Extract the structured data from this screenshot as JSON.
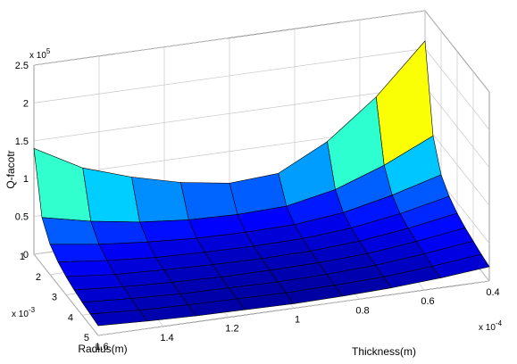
{
  "chart_data": {
    "type": "surface3d",
    "colormap": "jet",
    "grid": true,
    "zlabel": "Q-facotr",
    "radius_axis": {
      "label": "Radius(m)",
      "ticks": [
        "1",
        "2",
        "3",
        "4",
        "5"
      ],
      "exponent_base": "x 10",
      "exponent_power": "-3",
      "range": [
        1,
        5
      ]
    },
    "thickness_axis": {
      "label": "Thickness(m)",
      "ticks": [
        "1.6",
        "1.4",
        "1.2",
        "1",
        "0.8",
        "0.6",
        "0.4"
      ],
      "exponent_base": "x 10",
      "exponent_power": "-4",
      "range": [
        0.4,
        1.6
      ]
    },
    "z_axis": {
      "ticks": [
        "0",
        "0.5",
        "1",
        "1.5",
        "2",
        "2.5"
      ],
      "exponent_base": "x 10",
      "exponent_power": "5",
      "range": [
        0,
        2.5
      ]
    },
    "radius_x1e3": [
      1,
      1.5,
      2,
      2.5,
      3,
      3.5,
      4,
      4.5,
      5
    ],
    "thickness_x1e4": [
      1.6,
      1.45,
      1.3,
      1.15,
      1.0,
      0.85,
      0.7,
      0.55,
      0.4
    ],
    "q_factor_x1e5": [
      [
        1.4,
        1.05,
        0.84,
        0.68,
        0.58,
        0.62,
        0.95,
        1.45,
        2.1
      ],
      [
        0.62,
        0.48,
        0.38,
        0.32,
        0.3,
        0.32,
        0.45,
        0.68,
        0.98
      ],
      [
        0.4,
        0.31,
        0.25,
        0.21,
        0.2,
        0.21,
        0.28,
        0.42,
        0.6
      ],
      [
        0.3,
        0.23,
        0.18,
        0.16,
        0.15,
        0.16,
        0.21,
        0.31,
        0.45
      ],
      [
        0.24,
        0.18,
        0.15,
        0.13,
        0.12,
        0.13,
        0.17,
        0.25,
        0.36
      ],
      [
        0.2,
        0.15,
        0.12,
        0.1,
        0.1,
        0.11,
        0.14,
        0.21,
        0.3
      ],
      [
        0.17,
        0.13,
        0.1,
        0.09,
        0.08,
        0.09,
        0.12,
        0.18,
        0.26
      ],
      [
        0.15,
        0.11,
        0.09,
        0.08,
        0.07,
        0.08,
        0.1,
        0.15,
        0.22
      ],
      [
        0.13,
        0.1,
        0.08,
        0.07,
        0.06,
        0.07,
        0.09,
        0.13,
        0.19
      ]
    ]
  }
}
